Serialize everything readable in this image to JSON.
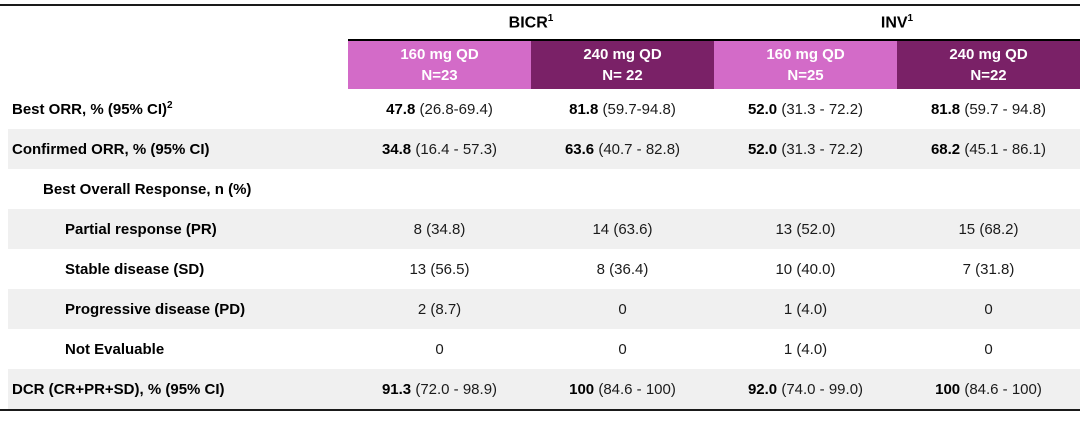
{
  "colors": {
    "pink": "#d36bc8",
    "purple": "#7a2167",
    "stripe": "#f0f0f0",
    "rule": "#1a1a1a"
  },
  "table": {
    "groups": [
      {
        "label": "BICR",
        "sup": "1"
      },
      {
        "label": "INV",
        "sup": "1"
      }
    ],
    "columns": [
      {
        "label": "160 mg QD",
        "n": "N=23",
        "color": "pink"
      },
      {
        "label": "240 mg QD",
        "n": "N= 22",
        "color": "purple"
      },
      {
        "label": "160 mg QD",
        "n": "N=25",
        "color": "pink"
      },
      {
        "label": "240 mg QD",
        "n": "N=22",
        "color": "purple"
      }
    ],
    "rows": [
      {
        "label": "Best ORR, % (95% CI)",
        "sup": "2",
        "cells": [
          {
            "b": "47.8",
            "t": " (26.8-69.4)"
          },
          {
            "b": "81.8",
            "t": " (59.7-94.8)"
          },
          {
            "b": "52.0",
            "t": " (31.3 - 72.2)"
          },
          {
            "b": "81.8",
            "t": " (59.7 - 94.8)"
          }
        ]
      },
      {
        "label": "Confirmed ORR, % (95% CI)",
        "cells": [
          {
            "b": "34.8",
            "t": " (16.4 - 57.3)"
          },
          {
            "b": "63.6",
            "t": " (40.7 - 82.8)"
          },
          {
            "b": "52.0",
            "t": " (31.3 - 72.2)"
          },
          {
            "b": "68.2",
            "t": " (45.1 - 86.1)"
          }
        ]
      },
      {
        "label": "Best Overall Response, n (%)",
        "cells": [
          {
            "t": ""
          },
          {
            "t": ""
          },
          {
            "t": ""
          },
          {
            "t": ""
          }
        ]
      },
      {
        "label": "Partial response (PR)",
        "cells": [
          {
            "t": "8 (34.8)"
          },
          {
            "t": "14 (63.6)"
          },
          {
            "t": "13 (52.0)"
          },
          {
            "t": "15 (68.2)"
          }
        ]
      },
      {
        "label": "Stable disease (SD)",
        "cells": [
          {
            "t": "13 (56.5)"
          },
          {
            "t": "8 (36.4)"
          },
          {
            "t": "10 (40.0)"
          },
          {
            "t": "7 (31.8)"
          }
        ]
      },
      {
        "label": "Progressive disease (PD)",
        "cells": [
          {
            "t": "2 (8.7)"
          },
          {
            "t": "0"
          },
          {
            "t": "1 (4.0)"
          },
          {
            "t": "0"
          }
        ]
      },
      {
        "label": "Not Evaluable",
        "cells": [
          {
            "t": "0"
          },
          {
            "t": "0"
          },
          {
            "t": "1 (4.0)"
          },
          {
            "t": "0"
          }
        ]
      },
      {
        "label": "DCR (CR+PR+SD), % (95% CI)",
        "cells": [
          {
            "b": "91.3",
            "t": " (72.0 - 98.9)"
          },
          {
            "b": "100",
            "t": " (84.6 - 100)"
          },
          {
            "b": "92.0",
            "t": " (74.0 - 99.0)"
          },
          {
            "b": "100",
            "t": " (84.6 - 100)"
          }
        ]
      }
    ]
  }
}
